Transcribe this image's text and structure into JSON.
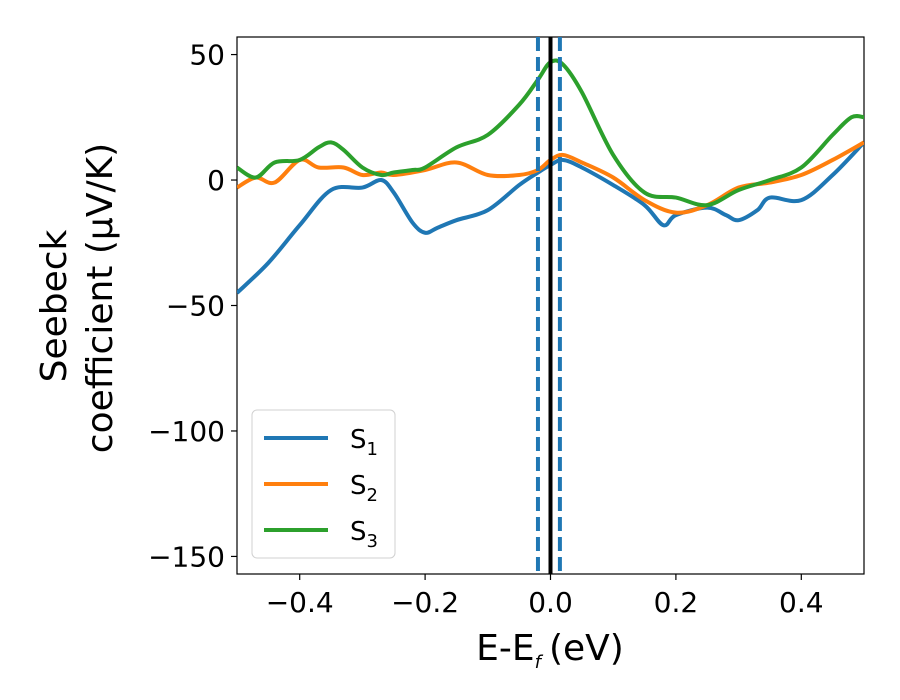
{
  "chart_data": {
    "type": "line",
    "xlabel": "E-E",
    "xlabel_sub": "f",
    "xlabel_unit": "(eV)",
    "ylabel_line1": "Seebeck",
    "ylabel_line2": "coefficient  (μV/K)",
    "xlim": [
      -0.5,
      0.5
    ],
    "ylim": [
      -157,
      57
    ],
    "xticks": [
      -0.4,
      -0.2,
      0.0,
      0.2,
      0.4
    ],
    "xtick_labels": [
      "−0.4",
      "−0.2",
      "0.0",
      "0.2",
      "0.4"
    ],
    "yticks": [
      50,
      0,
      -50,
      -100,
      -150
    ],
    "ytick_labels": [
      "50",
      "0",
      "−50",
      "−100",
      "−150"
    ],
    "legend_position": "lower-left",
    "vlines": [
      {
        "x": 0.0,
        "color": "#000000",
        "style": "solid"
      },
      {
        "x": -0.02,
        "color": "#1f77b4",
        "style": "dashed"
      },
      {
        "x": 0.015,
        "color": "#1f77b4",
        "style": "dashed"
      }
    ],
    "series": [
      {
        "name": "S",
        "sub": "1",
        "color": "#1f77b4",
        "x": [
          -0.5,
          -0.45,
          -0.4,
          -0.35,
          -0.3,
          -0.27,
          -0.25,
          -0.22,
          -0.2,
          -0.18,
          -0.15,
          -0.1,
          -0.05,
          -0.02,
          0.0,
          0.02,
          0.05,
          0.1,
          0.15,
          0.18,
          0.2,
          0.25,
          0.28,
          0.3,
          0.33,
          0.35,
          0.4,
          0.45,
          0.5
        ],
        "y": [
          -45,
          -33,
          -18,
          -4,
          -3,
          0,
          -5,
          -17,
          -21,
          -19,
          -16,
          -12,
          -2,
          3,
          6,
          8,
          5,
          -2,
          -10,
          -18,
          -14,
          -11,
          -14,
          -16,
          -12,
          -7,
          -8,
          2,
          15
        ]
      },
      {
        "name": "S",
        "sub": "2",
        "color": "#ff7f0e",
        "x": [
          -0.5,
          -0.47,
          -0.44,
          -0.4,
          -0.37,
          -0.33,
          -0.3,
          -0.27,
          -0.25,
          -0.2,
          -0.15,
          -0.1,
          -0.05,
          -0.02,
          0.0,
          0.02,
          0.05,
          0.1,
          0.15,
          0.2,
          0.25,
          0.3,
          0.35,
          0.4,
          0.45,
          0.5
        ],
        "y": [
          -3,
          1,
          -1,
          8,
          5,
          5,
          2,
          3,
          2,
          4,
          7,
          2,
          2,
          4,
          8,
          10,
          7,
          1,
          -8,
          -13,
          -10,
          -3,
          -1,
          2,
          8,
          15
        ]
      },
      {
        "name": "S",
        "sub": "3",
        "color": "#2ca02c",
        "x": [
          -0.5,
          -0.47,
          -0.44,
          -0.4,
          -0.37,
          -0.35,
          -0.33,
          -0.3,
          -0.27,
          -0.25,
          -0.22,
          -0.2,
          -0.15,
          -0.1,
          -0.05,
          -0.02,
          0.0,
          0.02,
          0.05,
          0.1,
          0.15,
          0.2,
          0.25,
          0.3,
          0.35,
          0.4,
          0.45,
          0.48,
          0.5
        ],
        "y": [
          5,
          1,
          7,
          8,
          13,
          15,
          12,
          5,
          2,
          3,
          4,
          5,
          13,
          18,
          30,
          40,
          47,
          46,
          35,
          10,
          -5,
          -7,
          -10,
          -4,
          0,
          5,
          18,
          25,
          25
        ]
      }
    ]
  }
}
